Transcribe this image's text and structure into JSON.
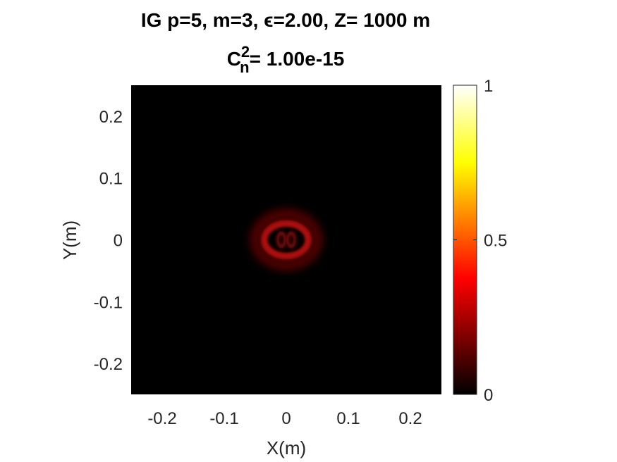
{
  "chart_data": {
    "type": "heatmap",
    "title_line1": "IG p=5, m=3, ϵ=2.00, Z= 1000 m",
    "title_line2_base": "C",
    "title_line2_sup": "2",
    "title_line2_sub": "n",
    "title_line2_rest": "= 1.00e-15",
    "xlabel": "X(m)",
    "ylabel": "Y(m)",
    "xlim": [
      -0.25,
      0.25
    ],
    "ylim": [
      -0.25,
      0.25
    ],
    "xticks": [
      -0.2,
      -0.1,
      0,
      0.1,
      0.2
    ],
    "xtick_labels": [
      "-0.2",
      "-0.1",
      "0",
      "0.1",
      "0.2"
    ],
    "yticks": [
      0.2,
      0.1,
      0,
      -0.1,
      -0.2
    ],
    "ytick_labels": [
      "0.2",
      "0.1",
      "0",
      "-0.1",
      "-0.2"
    ],
    "colorbar": {
      "colormap": "hot",
      "range": [
        0,
        1
      ],
      "ticks": [
        1,
        0.5,
        0
      ],
      "tick_labels": [
        "1",
        "0.5",
        "0"
      ]
    },
    "beam": {
      "center_x": 0.0,
      "center_y": 0.0,
      "peak_intensity": 0.45
    },
    "colors": {
      "background": "#000000",
      "ring": "#b01010",
      "axis_text": "#262626"
    }
  }
}
